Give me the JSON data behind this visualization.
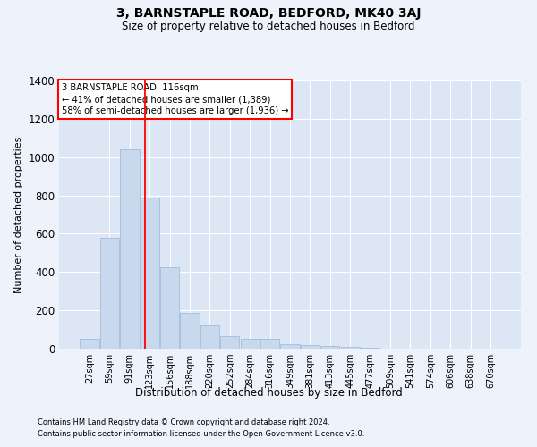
{
  "title": "3, BARNSTAPLE ROAD, BEDFORD, MK40 3AJ",
  "subtitle": "Size of property relative to detached houses in Bedford",
  "xlabel": "Distribution of detached houses by size in Bedford",
  "ylabel": "Number of detached properties",
  "bar_color": "#c8d9ee",
  "bar_edge_color": "#a0bee0",
  "background_color": "#dce6f5",
  "fig_background_color": "#eef2fa",
  "grid_color": "#ffffff",
  "categories": [
    "27sqm",
    "59sqm",
    "91sqm",
    "123sqm",
    "156sqm",
    "188sqm",
    "220sqm",
    "252sqm",
    "284sqm",
    "316sqm",
    "349sqm",
    "381sqm",
    "413sqm",
    "445sqm",
    "477sqm",
    "509sqm",
    "541sqm",
    "574sqm",
    "606sqm",
    "638sqm",
    "670sqm"
  ],
  "values": [
    50,
    580,
    1040,
    790,
    425,
    185,
    120,
    65,
    50,
    50,
    25,
    20,
    15,
    10,
    5,
    0,
    0,
    0,
    0,
    0,
    0
  ],
  "red_line_x": 2.78,
  "annotation_line1": "3 BARNSTAPLE ROAD: 116sqm",
  "annotation_line2": "← 41% of detached houses are smaller (1,389)",
  "annotation_line3": "58% of semi-detached houses are larger (1,936) →",
  "ylim": [
    0,
    1400
  ],
  "yticks": [
    0,
    200,
    400,
    600,
    800,
    1000,
    1200,
    1400
  ],
  "footer1": "Contains HM Land Registry data © Crown copyright and database right 2024.",
  "footer2": "Contains public sector information licensed under the Open Government Licence v3.0."
}
